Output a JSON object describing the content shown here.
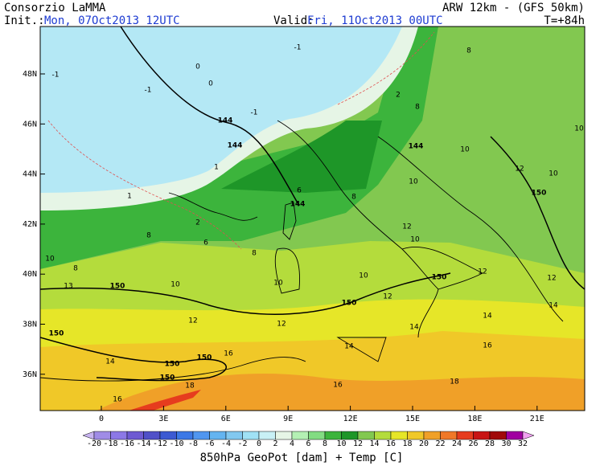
{
  "header": {
    "title": "Consorzio LaMMA",
    "model": "ARW 12km - (GFS 50km)",
    "init_label": "Init.:",
    "init": "Mon, 07Oct2013 12UTC",
    "valid_label": "Valid:",
    "valid": "Fri, 11Oct2013 00UTC",
    "lead": "T=+84h"
  },
  "map": {
    "lat_labels": [
      "48N",
      "46N",
      "44N",
      "42N",
      "40N",
      "38N",
      "36N"
    ],
    "lon_labels": [
      "0",
      "3E",
      "6E",
      "9E",
      "12E",
      "15E",
      "18E",
      "21E"
    ],
    "contour_labels": [
      "-1",
      "-1",
      "-1",
      "0",
      "0",
      "-1",
      "1",
      "144",
      "144",
      "144",
      "144",
      "2",
      "6",
      "8",
      "8",
      "10",
      "8",
      "13",
      "150",
      "10",
      "10",
      "10",
      "12",
      "10",
      "150",
      "12",
      "150",
      "12",
      "12",
      "12",
      "14",
      "150",
      "150",
      "150",
      "150",
      "16",
      "18",
      "16",
      "14",
      "14",
      "14",
      "16",
      "16",
      "18",
      "10",
      "12",
      "150",
      "10",
      "10",
      "8",
      "8",
      "6",
      "8",
      "12",
      "14",
      "10",
      "1",
      "2"
    ]
  },
  "colorbar": {
    "labels": [
      "-20",
      "-18",
      "-16",
      "-14",
      "-12",
      "-10",
      "-8",
      "-6",
      "-4",
      "-2",
      "0",
      "2",
      "4",
      "6",
      "8",
      "10",
      "12",
      "14",
      "16",
      "18",
      "20",
      "22",
      "24",
      "26",
      "28",
      "30",
      "32"
    ],
    "colors": [
      "#c8b4f0",
      "#a08ce6",
      "#8c78e6",
      "#6e5ad2",
      "#5050c8",
      "#3c5ad2",
      "#3c78e6",
      "#5096f0",
      "#64b4f0",
      "#82c8f0",
      "#a0e1f5",
      "#c8f0f5",
      "#e6f5e6",
      "#b4f0b4",
      "#82dc82",
      "#3cb43c",
      "#1e9628",
      "#82c850",
      "#b4dc3c",
      "#e6e628",
      "#f0c828",
      "#f0a028",
      "#f07828",
      "#e63c1e",
      "#c81414",
      "#a00a0a",
      "#a000a0",
      "#f0a0f0"
    ],
    "caption": "850hPa GeoPot [dam] + Temp [C]"
  }
}
